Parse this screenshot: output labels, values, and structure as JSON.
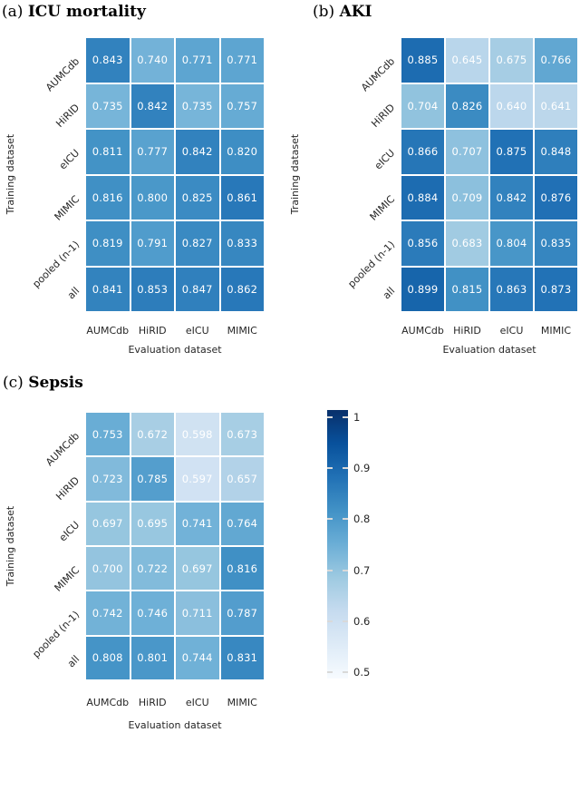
{
  "colormap": {
    "name": "Blues",
    "hex": [
      "#f7fbff",
      "#deebf7",
      "#c6dbef",
      "#9ecae1",
      "#6baed6",
      "#4292c6",
      "#2171b5",
      "#08519c",
      "#08306b"
    ]
  },
  "colors": {
    "background": "#ffffff",
    "cell_text": "#ffffff",
    "label_text": "#262626",
    "title_text": "#000000",
    "tick_mark": "#d9d9d9"
  },
  "chart_data": [
    {
      "type": "heatmap",
      "panel_label": "(a)",
      "title": "ICU mortality",
      "xlabel": "Evaluation dataset",
      "ylabel": "Training dataset",
      "columns": [
        "AUMCdb",
        "HiRID",
        "eICU",
        "MIMIC"
      ],
      "rows": [
        "AUMCdb",
        "HiRID",
        "eICU",
        "MIMIC",
        "pooled (n-1)",
        "all"
      ],
      "values": [
        [
          0.843,
          0.74,
          0.771,
          0.771
        ],
        [
          0.735,
          0.842,
          0.735,
          0.757
        ],
        [
          0.811,
          0.777,
          0.842,
          0.82
        ],
        [
          0.816,
          0.8,
          0.825,
          0.861
        ],
        [
          0.819,
          0.791,
          0.827,
          0.833
        ],
        [
          0.841,
          0.853,
          0.847,
          0.862
        ]
      ],
      "vmin": 0.5,
      "vmax": 1.0,
      "colormap": "Blues"
    },
    {
      "type": "heatmap",
      "panel_label": "(b)",
      "title": "AKI",
      "xlabel": "Evaluation dataset",
      "ylabel": "Training dataset",
      "columns": [
        "AUMCdb",
        "HiRID",
        "eICU",
        "MIMIC"
      ],
      "rows": [
        "AUMCdb",
        "HiRID",
        "eICU",
        "MIMIC",
        "pooled (n-1)",
        "all"
      ],
      "values": [
        [
          0.885,
          0.645,
          0.675,
          0.766
        ],
        [
          0.704,
          0.826,
          0.64,
          0.641
        ],
        [
          0.866,
          0.707,
          0.875,
          0.848
        ],
        [
          0.884,
          0.709,
          0.842,
          0.876
        ],
        [
          0.856,
          0.683,
          0.804,
          0.835
        ],
        [
          0.899,
          0.815,
          0.863,
          0.873
        ]
      ],
      "vmin": 0.5,
      "vmax": 1.0,
      "colormap": "Blues"
    },
    {
      "type": "heatmap",
      "panel_label": "(c)",
      "title": "Sepsis",
      "xlabel": "Evaluation dataset",
      "ylabel": "Training dataset",
      "columns": [
        "AUMCdb",
        "HiRID",
        "eICU",
        "MIMIC"
      ],
      "rows": [
        "AUMCdb",
        "HiRID",
        "eICU",
        "MIMIC",
        "pooled (n-1)",
        "all"
      ],
      "values": [
        [
          0.753,
          0.672,
          0.598,
          0.673
        ],
        [
          0.723,
          0.785,
          0.597,
          0.657
        ],
        [
          0.697,
          0.695,
          0.741,
          0.764
        ],
        [
          0.7,
          0.722,
          0.697,
          0.816
        ],
        [
          0.742,
          0.746,
          0.711,
          0.787
        ],
        [
          0.808,
          0.801,
          0.744,
          0.831
        ]
      ],
      "vmin": 0.5,
      "vmax": 1.0,
      "colormap": "Blues"
    }
  ],
  "colorbar": {
    "tick_labels": [
      "1",
      "0.9",
      "0.8",
      "0.7",
      "0.6",
      "0.5"
    ],
    "tick_values": [
      1.0,
      0.9,
      0.8,
      0.7,
      0.6,
      0.5
    ],
    "vmin": 0.5,
    "vmax": 1.0,
    "orientation": "vertical"
  }
}
